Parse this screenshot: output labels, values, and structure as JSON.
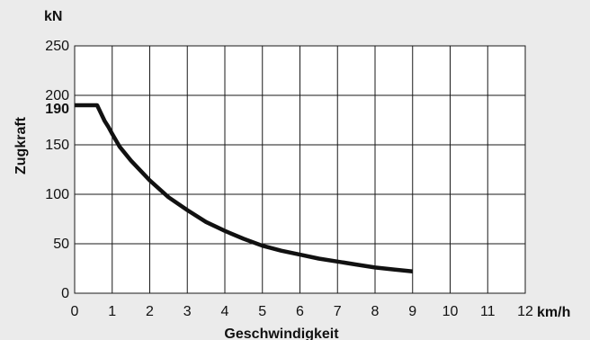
{
  "chart_data": {
    "type": "line",
    "title": "",
    "xlabel": "Geschwindigkeit",
    "ylabel": "Zugkraft",
    "x_unit": "km/h",
    "y_unit": "kN",
    "xlim": [
      0,
      12
    ],
    "ylim": [
      0,
      250
    ],
    "x_ticks": [
      "0",
      "1",
      "2",
      "3",
      "4",
      "5",
      "6",
      "7",
      "8",
      "9",
      "10",
      "11",
      "12"
    ],
    "y_ticks": [
      "0",
      "50",
      "100",
      "150",
      "200",
      "250"
    ],
    "y_ticks_values": [
      0,
      50,
      100,
      150,
      200,
      250
    ],
    "highlight_y_label": "190",
    "highlight_y_value": 190,
    "grid": true,
    "series": [
      {
        "x": [
          0,
          0.6,
          0.7,
          0.8,
          0.9,
          1.0,
          1.2,
          1.5,
          2.0,
          2.5,
          3.0,
          3.5,
          4.0,
          4.5,
          5.0,
          5.5,
          6.0,
          6.5,
          7.0,
          7.5,
          8.0,
          8.5,
          9.0
        ],
        "y": [
          190,
          190,
          182,
          174,
          168,
          161,
          148,
          134,
          114,
          97,
          84,
          72,
          63,
          55,
          48,
          43,
          39,
          35,
          32,
          29,
          26,
          24,
          22
        ]
      }
    ]
  }
}
